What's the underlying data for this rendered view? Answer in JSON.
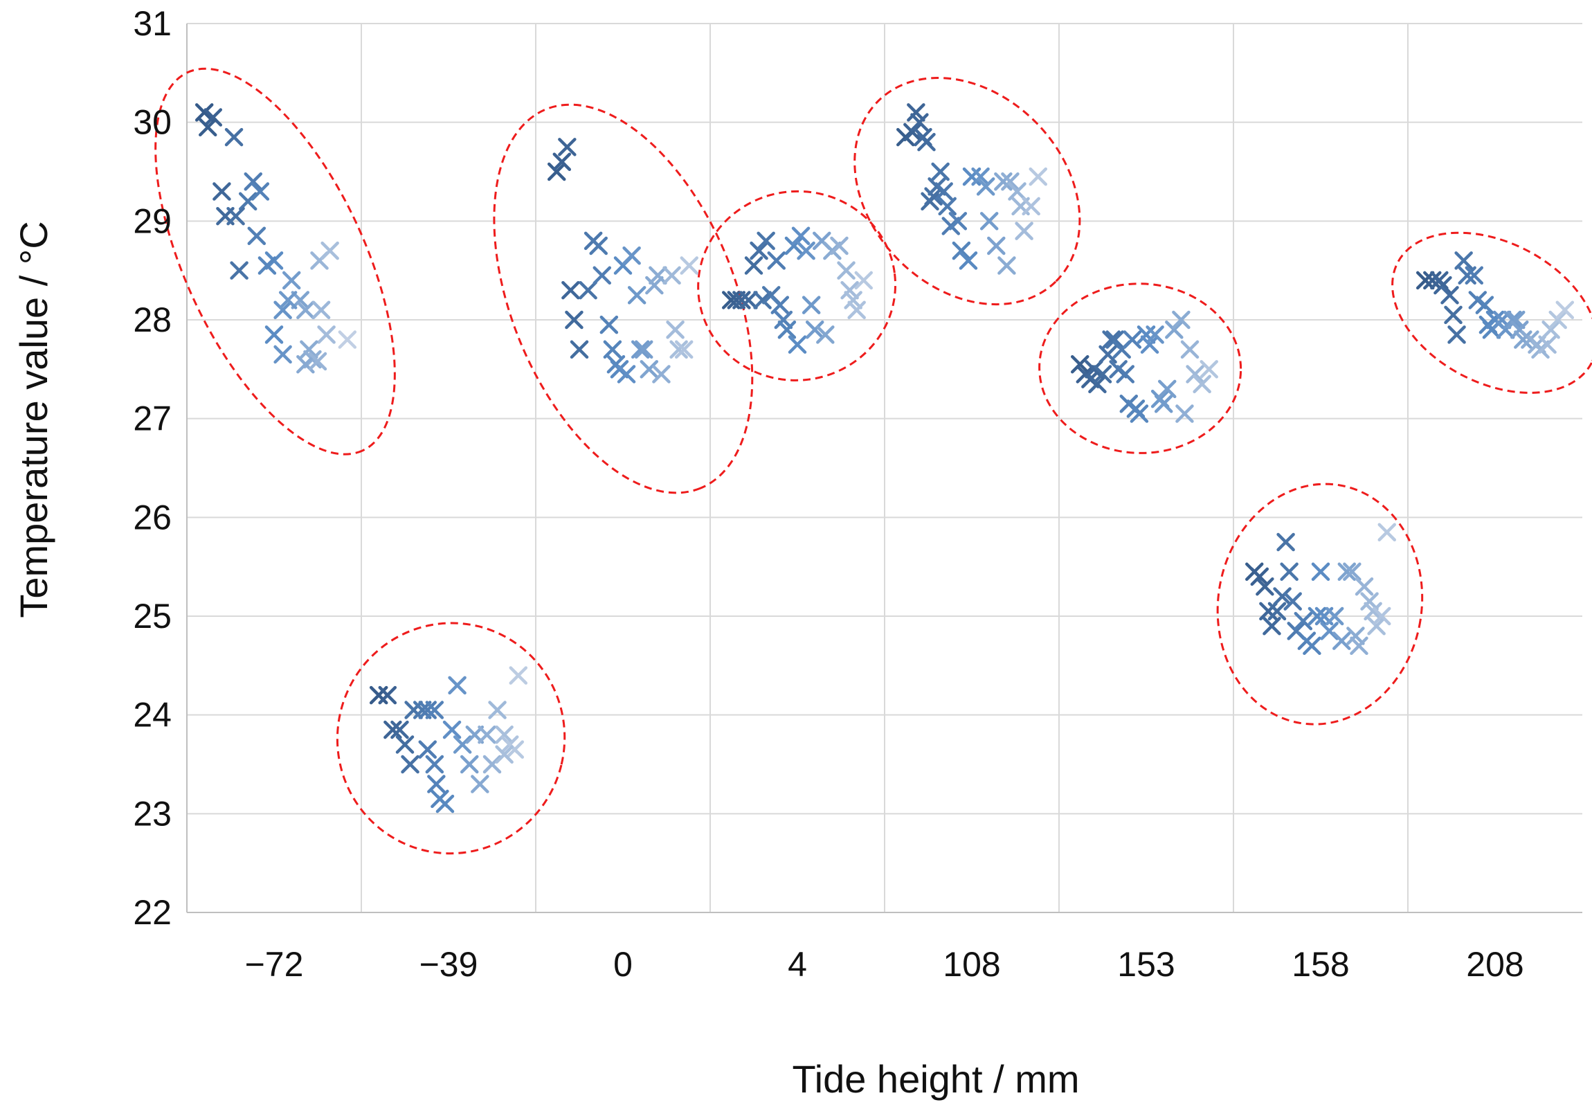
{
  "chart_data": {
    "type": "scatter",
    "title": "",
    "xlabel": "Tide height / mm",
    "ylabel": "Temperature value / °C",
    "categories": [
      "−72",
      "−39",
      "0",
      "4",
      "108",
      "153",
      "158",
      "208"
    ],
    "ylim": [
      22,
      31
    ],
    "yticks": [
      22,
      23,
      24,
      25,
      26,
      27,
      28,
      29,
      30,
      31
    ],
    "grid": true,
    "legend": "none",
    "marker": "x",
    "colors": {
      "dark": "#2d4f7c",
      "mid": "#5b8cc4",
      "light": "#d4dcea",
      "ellipse": "#ee1c1c",
      "grid": "#d9d9d9"
    },
    "clusters": [
      {
        "category": "−72",
        "points": [
          [
            0.1,
            30.1
          ],
          [
            0.15,
            30.05
          ],
          [
            0.12,
            29.95
          ],
          [
            0.27,
            29.85
          ],
          [
            0.2,
            29.3
          ],
          [
            0.38,
            29.4
          ],
          [
            0.35,
            29.2
          ],
          [
            0.42,
            29.3
          ],
          [
            0.22,
            29.05
          ],
          [
            0.28,
            29.05
          ],
          [
            0.4,
            28.85
          ],
          [
            0.5,
            28.6
          ],
          [
            0.46,
            28.55
          ],
          [
            0.6,
            28.4
          ],
          [
            0.65,
            28.2
          ],
          [
            0.55,
            28.1
          ],
          [
            0.3,
            28.5
          ],
          [
            0.58,
            28.2
          ],
          [
            0.68,
            28.1
          ],
          [
            0.77,
            28.1
          ],
          [
            0.8,
            27.85
          ],
          [
            0.5,
            27.85
          ],
          [
            0.55,
            27.65
          ],
          [
            0.7,
            27.7
          ],
          [
            0.72,
            27.6
          ],
          [
            0.76,
            28.6
          ],
          [
            0.82,
            28.7
          ],
          [
            0.92,
            27.8
          ],
          [
            0.68,
            27.55
          ],
          [
            0.75,
            27.58
          ]
        ]
      },
      {
        "category": "−39",
        "points": [
          [
            0.1,
            24.2
          ],
          [
            0.15,
            24.2
          ],
          [
            0.18,
            23.85
          ],
          [
            0.22,
            23.85
          ],
          [
            0.3,
            24.05
          ],
          [
            0.35,
            24.05
          ],
          [
            0.38,
            24.05
          ],
          [
            0.42,
            24.05
          ],
          [
            0.25,
            23.7
          ],
          [
            0.28,
            23.5
          ],
          [
            0.38,
            23.65
          ],
          [
            0.42,
            23.5
          ],
          [
            0.43,
            23.3
          ],
          [
            0.45,
            23.15
          ],
          [
            0.48,
            23.1
          ],
          [
            0.52,
            23.85
          ],
          [
            0.55,
            24.3
          ],
          [
            0.58,
            23.7
          ],
          [
            0.62,
            23.5
          ],
          [
            0.65,
            23.8
          ],
          [
            0.68,
            23.3
          ],
          [
            0.72,
            23.8
          ],
          [
            0.75,
            23.5
          ],
          [
            0.78,
            24.05
          ],
          [
            0.82,
            23.8
          ],
          [
            0.85,
            23.7
          ],
          [
            0.88,
            23.65
          ],
          [
            0.9,
            24.4
          ],
          [
            0.82,
            23.6
          ]
        ]
      },
      {
        "category": "0",
        "points": [
          [
            0.12,
            29.5
          ],
          [
            0.15,
            29.6
          ],
          [
            0.18,
            29.75
          ],
          [
            0.2,
            28.3
          ],
          [
            0.22,
            28.0
          ],
          [
            0.25,
            27.7
          ],
          [
            0.3,
            28.3
          ],
          [
            0.33,
            28.8
          ],
          [
            0.36,
            28.75
          ],
          [
            0.38,
            28.45
          ],
          [
            0.42,
            27.95
          ],
          [
            0.44,
            27.7
          ],
          [
            0.46,
            27.55
          ],
          [
            0.48,
            27.5
          ],
          [
            0.5,
            28.55
          ],
          [
            0.52,
            27.45
          ],
          [
            0.55,
            28.65
          ],
          [
            0.58,
            28.25
          ],
          [
            0.6,
            27.7
          ],
          [
            0.62,
            27.7
          ],
          [
            0.65,
            27.5
          ],
          [
            0.68,
            28.35
          ],
          [
            0.7,
            28.45
          ],
          [
            0.72,
            27.45
          ],
          [
            0.78,
            28.45
          ],
          [
            0.8,
            27.9
          ],
          [
            0.82,
            27.7
          ],
          [
            0.85,
            27.7
          ],
          [
            0.88,
            28.55
          ]
        ]
      },
      {
        "category": "4",
        "points": [
          [
            0.12,
            28.2
          ],
          [
            0.15,
            28.2
          ],
          [
            0.18,
            28.2
          ],
          [
            0.22,
            28.2
          ],
          [
            0.25,
            28.55
          ],
          [
            0.28,
            28.7
          ],
          [
            0.3,
            28.2
          ],
          [
            0.32,
            28.8
          ],
          [
            0.35,
            28.25
          ],
          [
            0.38,
            28.6
          ],
          [
            0.4,
            28.15
          ],
          [
            0.42,
            28.0
          ],
          [
            0.44,
            27.9
          ],
          [
            0.48,
            28.75
          ],
          [
            0.5,
            27.75
          ],
          [
            0.52,
            28.85
          ],
          [
            0.55,
            28.7
          ],
          [
            0.58,
            28.15
          ],
          [
            0.6,
            27.9
          ],
          [
            0.64,
            28.8
          ],
          [
            0.66,
            27.85
          ],
          [
            0.7,
            28.7
          ],
          [
            0.74,
            28.75
          ],
          [
            0.78,
            28.5
          ],
          [
            0.8,
            28.3
          ],
          [
            0.82,
            28.2
          ],
          [
            0.84,
            28.1
          ],
          [
            0.88,
            28.4
          ]
        ]
      },
      {
        "category": "108",
        "points": [
          [
            0.12,
            29.85
          ],
          [
            0.16,
            29.9
          ],
          [
            0.18,
            30.1
          ],
          [
            0.2,
            30.0
          ],
          [
            0.22,
            29.85
          ],
          [
            0.24,
            29.8
          ],
          [
            0.26,
            29.2
          ],
          [
            0.28,
            29.25
          ],
          [
            0.3,
            29.35
          ],
          [
            0.32,
            29.5
          ],
          [
            0.34,
            29.3
          ],
          [
            0.36,
            29.15
          ],
          [
            0.38,
            28.95
          ],
          [
            0.42,
            29.0
          ],
          [
            0.44,
            28.7
          ],
          [
            0.48,
            28.6
          ],
          [
            0.5,
            29.45
          ],
          [
            0.55,
            29.45
          ],
          [
            0.58,
            29.35
          ],
          [
            0.6,
            29.0
          ],
          [
            0.64,
            28.75
          ],
          [
            0.68,
            29.4
          ],
          [
            0.7,
            28.55
          ],
          [
            0.72,
            29.4
          ],
          [
            0.76,
            29.3
          ],
          [
            0.78,
            29.15
          ],
          [
            0.8,
            28.9
          ],
          [
            0.84,
            29.15
          ],
          [
            0.88,
            29.45
          ]
        ]
      },
      {
        "category": "153",
        "points": [
          [
            0.12,
            27.55
          ],
          [
            0.15,
            27.45
          ],
          [
            0.18,
            27.4
          ],
          [
            0.2,
            27.5
          ],
          [
            0.22,
            27.35
          ],
          [
            0.25,
            27.45
          ],
          [
            0.28,
            27.65
          ],
          [
            0.3,
            27.8
          ],
          [
            0.32,
            27.8
          ],
          [
            0.34,
            27.5
          ],
          [
            0.36,
            27.7
          ],
          [
            0.38,
            27.45
          ],
          [
            0.4,
            27.15
          ],
          [
            0.42,
            27.8
          ],
          [
            0.44,
            27.1
          ],
          [
            0.46,
            27.05
          ],
          [
            0.5,
            27.85
          ],
          [
            0.52,
            27.75
          ],
          [
            0.55,
            27.85
          ],
          [
            0.58,
            27.2
          ],
          [
            0.6,
            27.15
          ],
          [
            0.62,
            27.3
          ],
          [
            0.66,
            27.9
          ],
          [
            0.7,
            28.0
          ],
          [
            0.72,
            27.05
          ],
          [
            0.75,
            27.7
          ],
          [
            0.78,
            27.45
          ],
          [
            0.82,
            27.35
          ],
          [
            0.86,
            27.5
          ]
        ]
      },
      {
        "category": "158",
        "points": [
          [
            0.12,
            25.45
          ],
          [
            0.15,
            25.4
          ],
          [
            0.18,
            25.3
          ],
          [
            0.2,
            25.05
          ],
          [
            0.22,
            24.9
          ],
          [
            0.25,
            25.05
          ],
          [
            0.28,
            25.2
          ],
          [
            0.3,
            25.75
          ],
          [
            0.32,
            25.45
          ],
          [
            0.34,
            25.15
          ],
          [
            0.36,
            24.85
          ],
          [
            0.4,
            24.95
          ],
          [
            0.42,
            24.75
          ],
          [
            0.45,
            24.7
          ],
          [
            0.48,
            25.0
          ],
          [
            0.5,
            25.45
          ],
          [
            0.52,
            25.0
          ],
          [
            0.55,
            24.85
          ],
          [
            0.58,
            25.0
          ],
          [
            0.62,
            24.75
          ],
          [
            0.65,
            25.45
          ],
          [
            0.68,
            25.45
          ],
          [
            0.7,
            24.8
          ],
          [
            0.72,
            24.7
          ],
          [
            0.75,
            25.3
          ],
          [
            0.78,
            25.15
          ],
          [
            0.8,
            25.05
          ],
          [
            0.82,
            24.9
          ],
          [
            0.85,
            25.0
          ],
          [
            0.88,
            25.85
          ]
        ]
      },
      {
        "category": "208",
        "points": [
          [
            0.1,
            28.4
          ],
          [
            0.14,
            28.4
          ],
          [
            0.18,
            28.4
          ],
          [
            0.2,
            28.35
          ],
          [
            0.24,
            28.25
          ],
          [
            0.26,
            28.05
          ],
          [
            0.28,
            27.85
          ],
          [
            0.32,
            28.6
          ],
          [
            0.34,
            28.45
          ],
          [
            0.38,
            28.45
          ],
          [
            0.4,
            28.2
          ],
          [
            0.44,
            28.15
          ],
          [
            0.46,
            27.95
          ],
          [
            0.48,
            27.9
          ],
          [
            0.5,
            28.0
          ],
          [
            0.54,
            28.0
          ],
          [
            0.56,
            27.9
          ],
          [
            0.6,
            28.0
          ],
          [
            0.62,
            28.0
          ],
          [
            0.64,
            27.9
          ],
          [
            0.66,
            27.8
          ],
          [
            0.7,
            27.8
          ],
          [
            0.74,
            27.75
          ],
          [
            0.76,
            27.7
          ],
          [
            0.8,
            27.75
          ],
          [
            0.82,
            27.9
          ],
          [
            0.86,
            28.0
          ],
          [
            0.9,
            28.1
          ]
        ]
      }
    ]
  }
}
